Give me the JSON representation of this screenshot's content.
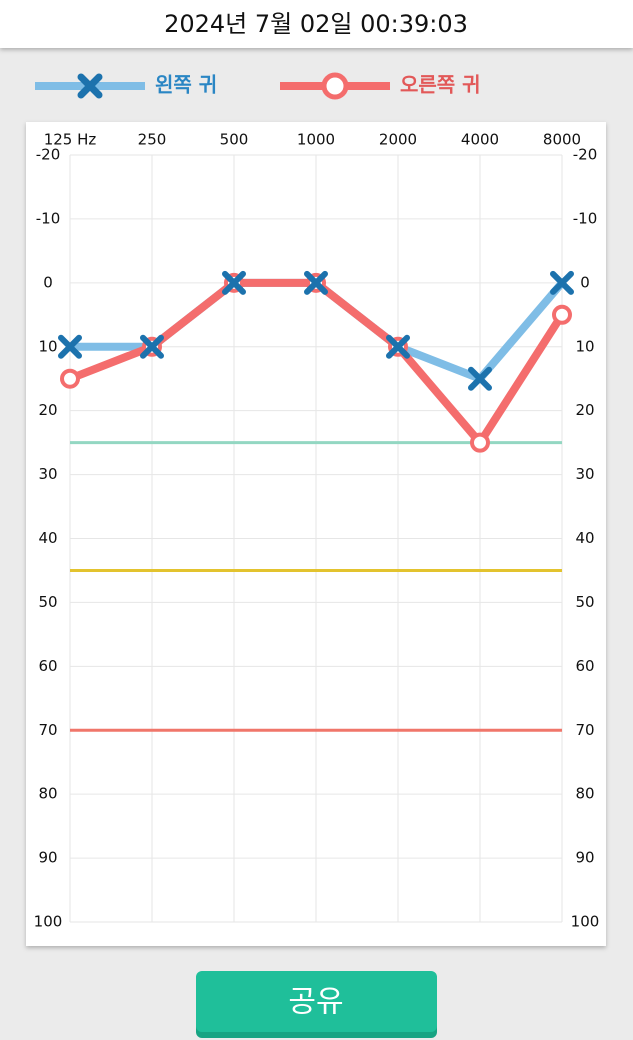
{
  "header": {
    "title": "2024년 7월 02일 00:39:03"
  },
  "chart_data": {
    "type": "line",
    "categories": [
      "125 Hz",
      "250",
      "500",
      "1000",
      "2000",
      "4000",
      "8000"
    ],
    "series": [
      {
        "name": "왼쪽 귀",
        "color": "#7fbde6",
        "marker": "x",
        "marker_color": "#1c72ad",
        "legend_color": "#2a86c4",
        "values": [
          10,
          10,
          0,
          0,
          10,
          15,
          0
        ]
      },
      {
        "name": "오른쪽 귀",
        "color": "#f46d6d",
        "marker": "circle",
        "marker_color": "#f46d6d",
        "legend_color": "#e25858",
        "values": [
          15,
          10,
          0,
          0,
          10,
          25,
          5
        ]
      }
    ],
    "ylim": [
      -20,
      100
    ],
    "y_inverted": true,
    "yticks": [
      -20,
      -10,
      0,
      10,
      20,
      30,
      40,
      50,
      60,
      70,
      80,
      90,
      100
    ],
    "y2lim": [
      -20,
      100
    ],
    "y2ticks": [
      -20,
      -10,
      0,
      10,
      20,
      30,
      40,
      50,
      60,
      70,
      80,
      90,
      100
    ],
    "grid": true,
    "reference_lines": [
      {
        "value": 25,
        "color": "#93d7c2"
      },
      {
        "value": 45,
        "color": "#e3c32e"
      },
      {
        "value": 70,
        "color": "#f0766a"
      }
    ]
  },
  "button": {
    "label": "공유"
  }
}
